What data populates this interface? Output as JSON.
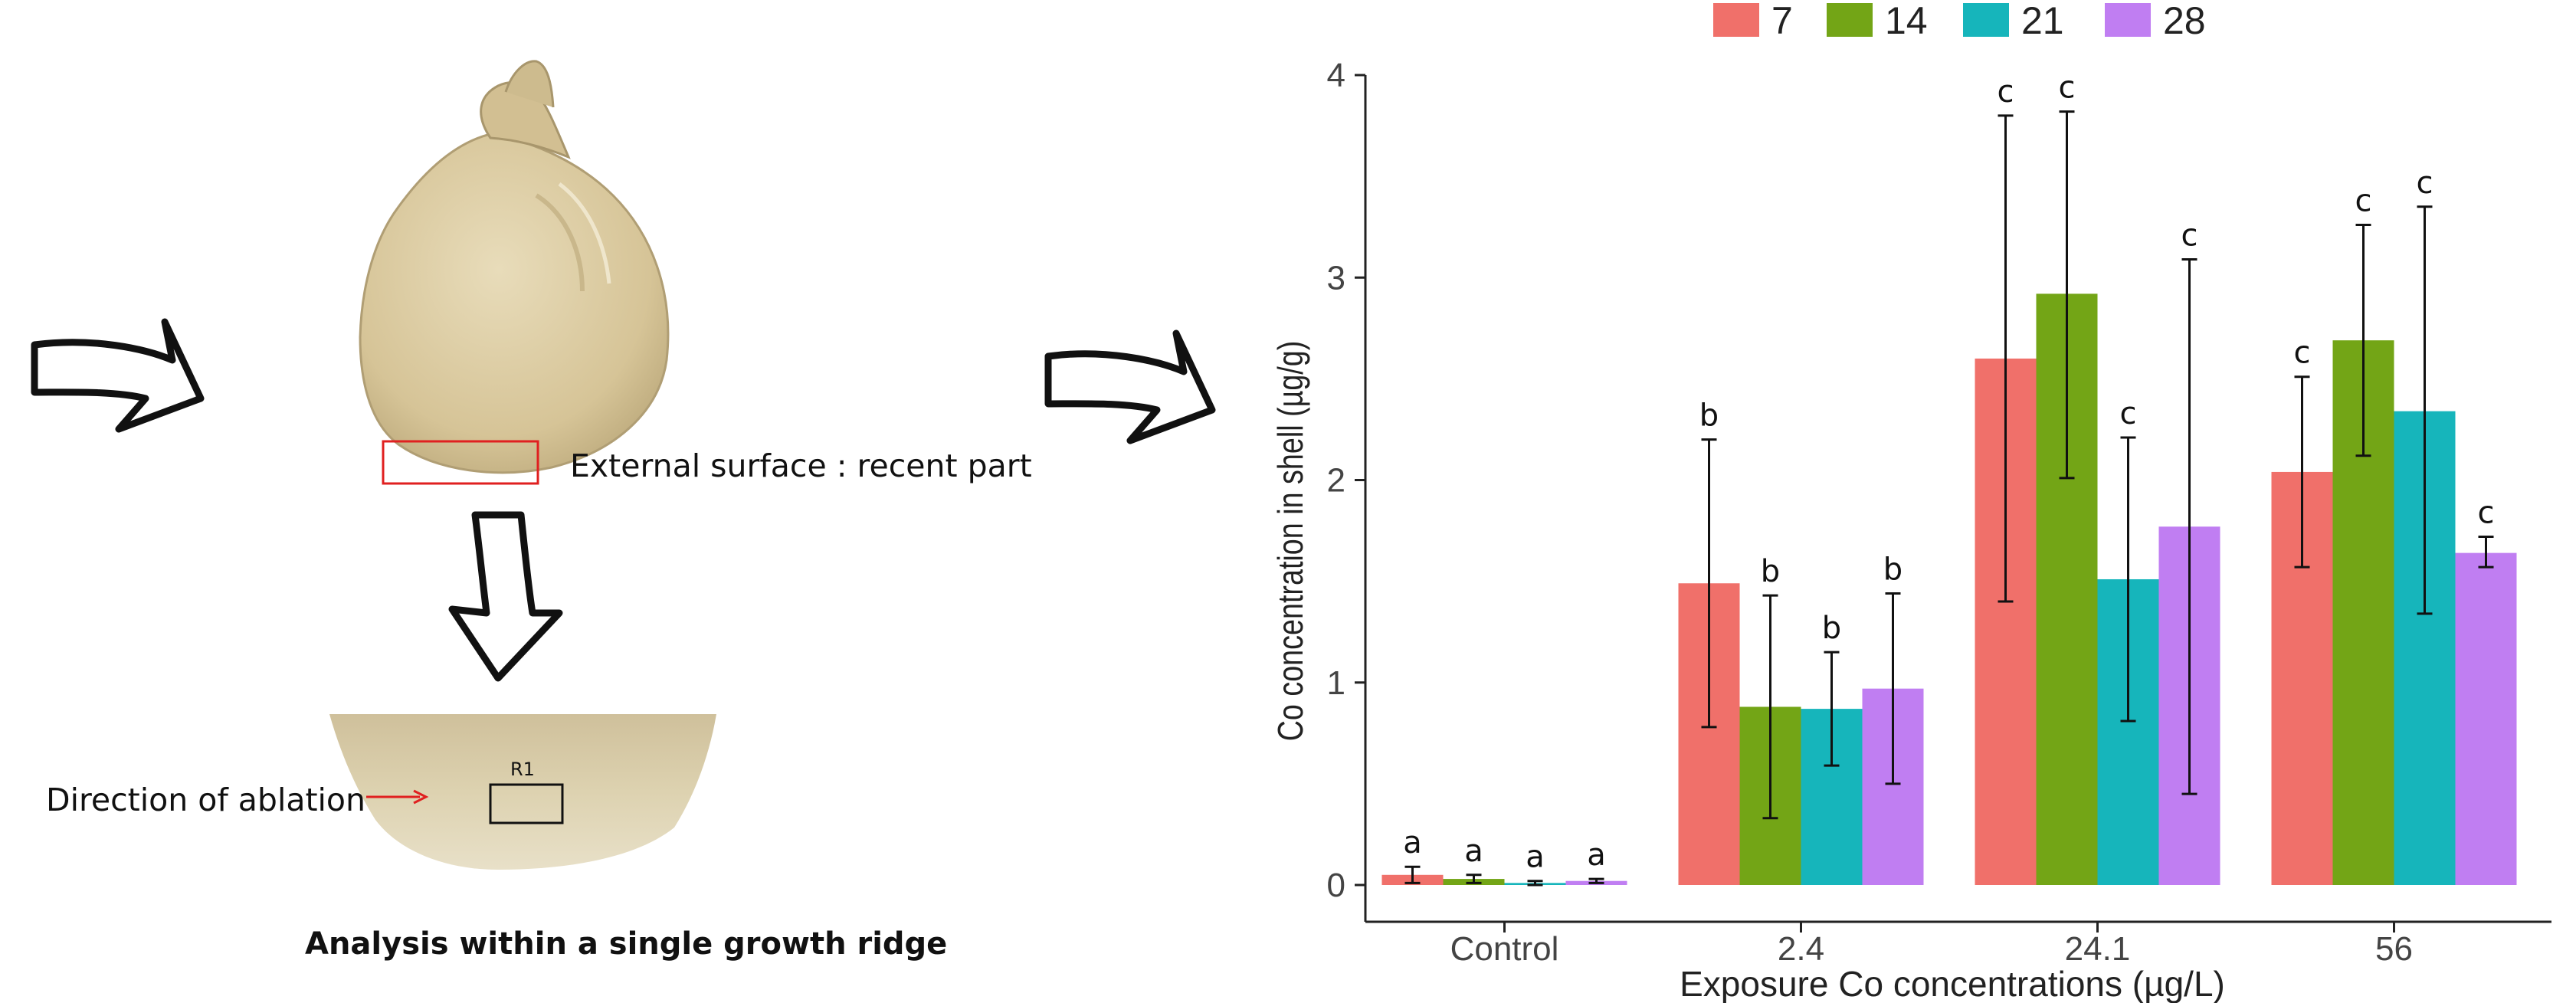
{
  "figure": {
    "surface_label": "External surface : recent part",
    "ablation_label": "Direction of ablation",
    "region_label": "R1",
    "caption": "Analysis within a single growth ridge"
  },
  "colors": {
    "series": [
      "#F0706A",
      "#73A516",
      "#16B5BB",
      "#C07EF2"
    ],
    "shell": "#d9c79b",
    "box_red": "#e02020",
    "arrow_red": "#e02020"
  },
  "icons": [
    "right-arrow-icon",
    "down-arrow-icon"
  ],
  "chart_data": {
    "type": "bar",
    "title": "",
    "xlabel": "Exposure Co concentrations (µg/L)",
    "ylabel": "Co concentration in shell (µg/g)",
    "ylim": [
      0,
      4
    ],
    "yticks": [
      "0",
      "1",
      "2",
      "3",
      "4"
    ],
    "grid": false,
    "legend_position": "top",
    "categories": [
      "Control",
      "2.4",
      "24.1",
      "56"
    ],
    "series": [
      {
        "name": "7",
        "values": [
          0.05,
          1.49,
          2.6,
          2.04
        ],
        "err_low": [
          0.01,
          0.78,
          1.4,
          1.57
        ],
        "err_high": [
          0.09,
          2.2,
          3.8,
          2.51
        ],
        "labels": [
          "a",
          "b",
          "c",
          "c"
        ]
      },
      {
        "name": "14",
        "values": [
          0.03,
          0.88,
          2.92,
          2.69
        ],
        "err_low": [
          0.01,
          0.33,
          2.01,
          2.12
        ],
        "err_high": [
          0.05,
          1.43,
          3.82,
          3.26
        ],
        "labels": [
          "a",
          "b",
          "c",
          "c"
        ]
      },
      {
        "name": "21",
        "values": [
          0.01,
          0.87,
          1.51,
          2.34
        ],
        "err_low": [
          0.0,
          0.59,
          0.81,
          1.34
        ],
        "err_high": [
          0.02,
          1.15,
          2.21,
          3.35
        ],
        "labels": [
          "a",
          "b",
          "c",
          "c"
        ]
      },
      {
        "name": "28",
        "values": [
          0.02,
          0.97,
          1.77,
          1.64
        ],
        "err_low": [
          0.01,
          0.5,
          0.45,
          1.57
        ],
        "err_high": [
          0.03,
          1.44,
          3.09,
          1.72
        ],
        "labels": [
          "a",
          "b",
          "c",
          "c"
        ]
      }
    ]
  }
}
